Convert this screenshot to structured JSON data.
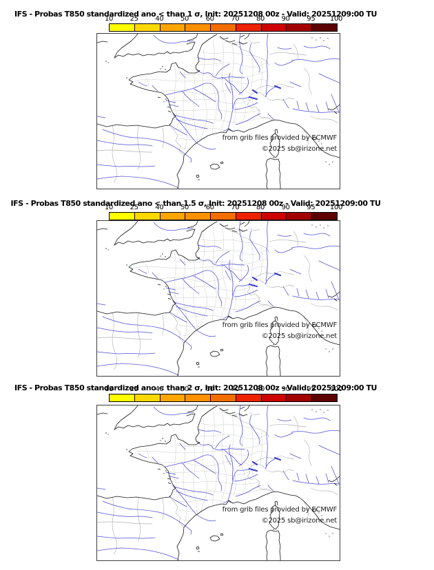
{
  "panels": [
    {
      "title": "IFS - Probas T850  standardized ano < than 1 σ, Init: 20251208 00z - Valid: 20251209:00 TU"
    },
    {
      "title": "IFS - Probas T850  standardized ano < than 1.5 σ, Init: 20251208 00z - Valid: 20251209:00 TU"
    },
    {
      "title": "IFS - Probas T850  standardized ano < than 2 σ, Init: 20251208 00z - Valid: 20251209:00 TU"
    }
  ],
  "colorbar": {
    "ticks": [
      "10",
      "25",
      "40",
      "50",
      "60",
      "70",
      "80",
      "90",
      "95",
      "100"
    ],
    "colors": [
      "#ffff00",
      "#ffd800",
      "#ffa500",
      "#ff9000",
      "#f26e00",
      "#ee2100",
      "#ce0200",
      "#a30000",
      "#5e0000"
    ]
  },
  "map": {
    "attribution_line1": "from grib files provided by ECMWF",
    "attribution_line2": "©2025 sb@irizone.net"
  }
}
